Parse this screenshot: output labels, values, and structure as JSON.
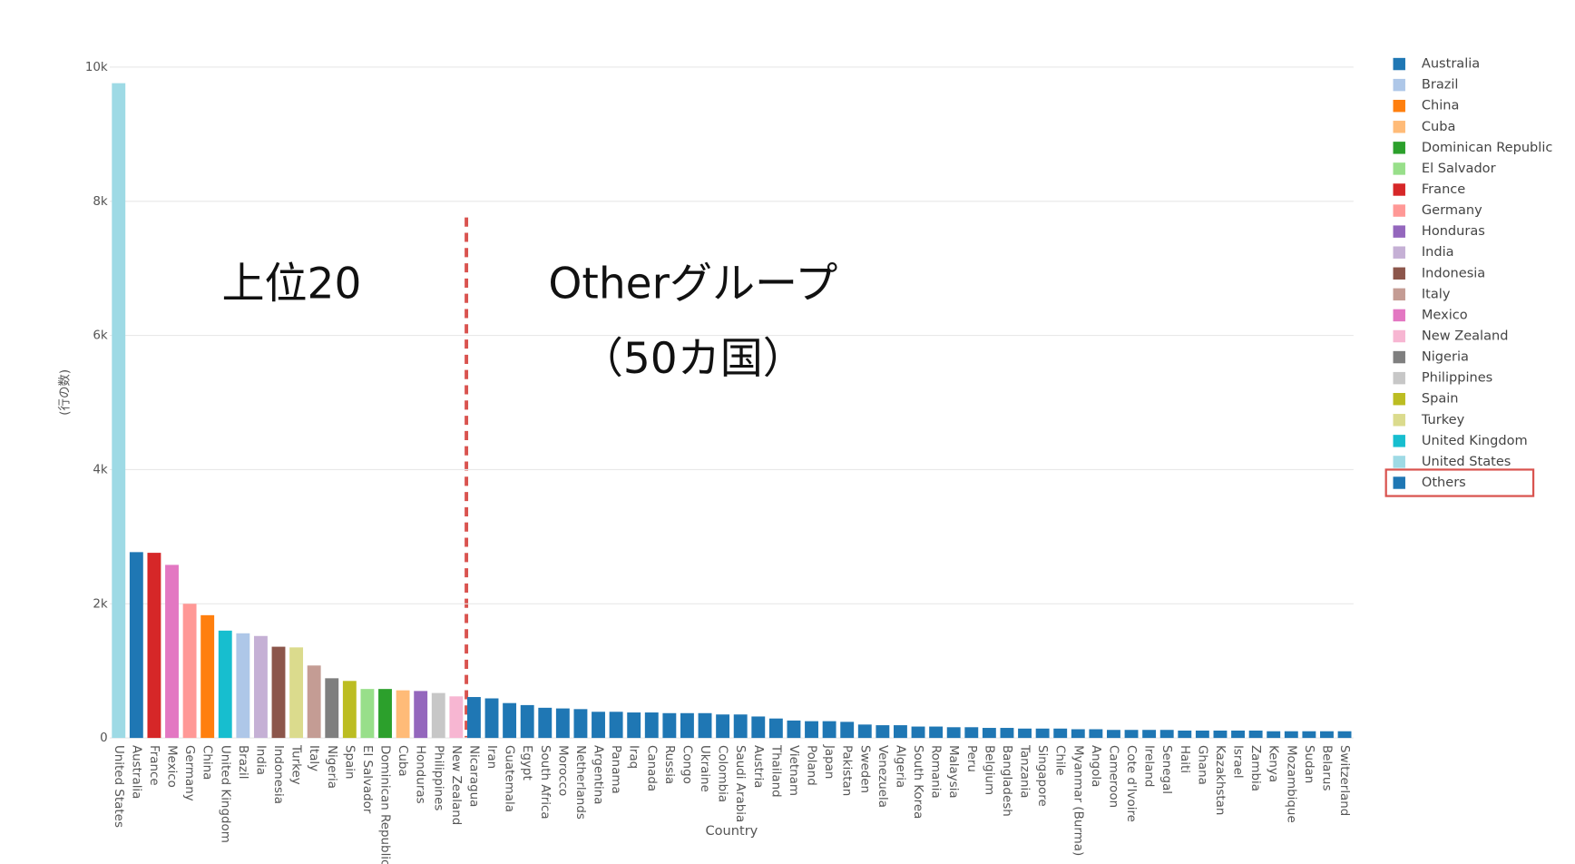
{
  "chart_data": {
    "type": "bar",
    "x_label": "Country",
    "y_label": "(行の数)",
    "annotations": [
      "上位20",
      "Otherグループ",
      "（50カ国）"
    ],
    "categories": [
      "United States",
      "Australia",
      "France",
      "Mexico",
      "Germany",
      "China",
      "United Kingdom",
      "Brazil",
      "India",
      "Indonesia",
      "Turkey",
      "Italy",
      "Nigeria",
      "Spain",
      "El Salvador",
      "Dominican Republic",
      "Cuba",
      "Honduras",
      "Philippines",
      "New Zealand",
      "Nicaragua",
      "Iran",
      "Guatemala",
      "Egypt",
      "South Africa",
      "Morocco",
      "Netherlands",
      "Argentina",
      "Panama",
      "Iraq",
      "Canada",
      "Russia",
      "Congo",
      "Ukraine",
      "Colombia",
      "Saudi Arabia",
      "Austria",
      "Thailand",
      "Vietnam",
      "Poland",
      "Japan",
      "Pakistan",
      "Sweden",
      "Venezuela",
      "Algeria",
      "South Korea",
      "Romania",
      "Malaysia",
      "Peru",
      "Belgium",
      "Bangladesh",
      "Tanzania",
      "Singapore",
      "Chile",
      "Myanmar (Burma)",
      "Angola",
      "Cameroon",
      "Cote d'Ivoire",
      "Ireland",
      "Senegal",
      "Haiti",
      "Ghana",
      "Kazakhstan",
      "Israel",
      "Zambia",
      "Kenya",
      "Mozambique",
      "Sudan",
      "Belarus",
      "Switzerland"
    ],
    "values": [
      9760,
      2770,
      2760,
      2580,
      2000,
      1830,
      1600,
      1560,
      1520,
      1360,
      1350,
      1080,
      890,
      850,
      730,
      730,
      710,
      700,
      670,
      620,
      610,
      590,
      520,
      490,
      450,
      440,
      430,
      390,
      390,
      380,
      380,
      370,
      370,
      370,
      350,
      350,
      320,
      290,
      260,
      250,
      250,
      240,
      200,
      190,
      190,
      170,
      170,
      160,
      160,
      150,
      150,
      140,
      140,
      140,
      130,
      130,
      120,
      120,
      120,
      120,
      110,
      110,
      110,
      110,
      110,
      100,
      100,
      100,
      100,
      100
    ],
    "colors": [
      "#9edae5",
      "#1f77b4",
      "#d62728",
      "#e377c2",
      "#ff9896",
      "#ff7f0e",
      "#17becf",
      "#aec7e8",
      "#c5b0d5",
      "#8c564b",
      "#dbdb8d",
      "#c49c94",
      "#7f7f7f",
      "#bcbd22",
      "#98df8a",
      "#2ca02c",
      "#ffbb78",
      "#9467bd",
      "#c7c7c7",
      "#f7b6d2",
      "#1f77b4",
      "#1f77b4",
      "#1f77b4",
      "#1f77b4",
      "#1f77b4",
      "#1f77b4",
      "#1f77b4",
      "#1f77b4",
      "#1f77b4",
      "#1f77b4",
      "#1f77b4",
      "#1f77b4",
      "#1f77b4",
      "#1f77b4",
      "#1f77b4",
      "#1f77b4",
      "#1f77b4",
      "#1f77b4",
      "#1f77b4",
      "#1f77b4",
      "#1f77b4",
      "#1f77b4",
      "#1f77b4",
      "#1f77b4",
      "#1f77b4",
      "#1f77b4",
      "#1f77b4",
      "#1f77b4",
      "#1f77b4",
      "#1f77b4",
      "#1f77b4",
      "#1f77b4",
      "#1f77b4",
      "#1f77b4",
      "#1f77b4",
      "#1f77b4",
      "#1f77b4",
      "#1f77b4",
      "#1f77b4",
      "#1f77b4",
      "#1f77b4",
      "#1f77b4",
      "#1f77b4",
      "#1f77b4",
      "#1f77b4",
      "#1f77b4",
      "#1f77b4",
      "#1f77b4",
      "#1f77b4",
      "#1f77b4"
    ],
    "legend": [
      {
        "name": "Australia",
        "color": "#1f77b4"
      },
      {
        "name": "Brazil",
        "color": "#aec7e8"
      },
      {
        "name": "China",
        "color": "#ff7f0e"
      },
      {
        "name": "Cuba",
        "color": "#ffbb78"
      },
      {
        "name": "Dominican Republic",
        "color": "#2ca02c"
      },
      {
        "name": "El Salvador",
        "color": "#98df8a"
      },
      {
        "name": "France",
        "color": "#d62728"
      },
      {
        "name": "Germany",
        "color": "#ff9896"
      },
      {
        "name": "Honduras",
        "color": "#9467bd"
      },
      {
        "name": "India",
        "color": "#c5b0d5"
      },
      {
        "name": "Indonesia",
        "color": "#8c564b"
      },
      {
        "name": "Italy",
        "color": "#c49c94"
      },
      {
        "name": "Mexico",
        "color": "#e377c2"
      },
      {
        "name": "New Zealand",
        "color": "#f7b6d2"
      },
      {
        "name": "Nigeria",
        "color": "#7f7f7f"
      },
      {
        "name": "Philippines",
        "color": "#c7c7c7"
      },
      {
        "name": "Spain",
        "color": "#bcbd22"
      },
      {
        "name": "Turkey",
        "color": "#dbdb8d"
      },
      {
        "name": "United Kingdom",
        "color": "#17becf"
      },
      {
        "name": "United States",
        "color": "#9edae5"
      },
      {
        "name": "Others",
        "color": "#1f77b4"
      }
    ],
    "legend_position": "right",
    "ylim": [
      0,
      10000
    ],
    "yticks": [
      {
        "value": 0,
        "label": "0"
      },
      {
        "value": 2000,
        "label": "2k"
      },
      {
        "value": 4000,
        "label": "4k"
      },
      {
        "value": 6000,
        "label": "6k"
      },
      {
        "value": 8000,
        "label": "8k"
      },
      {
        "value": 10000,
        "label": "10k"
      }
    ],
    "grid": true
  }
}
